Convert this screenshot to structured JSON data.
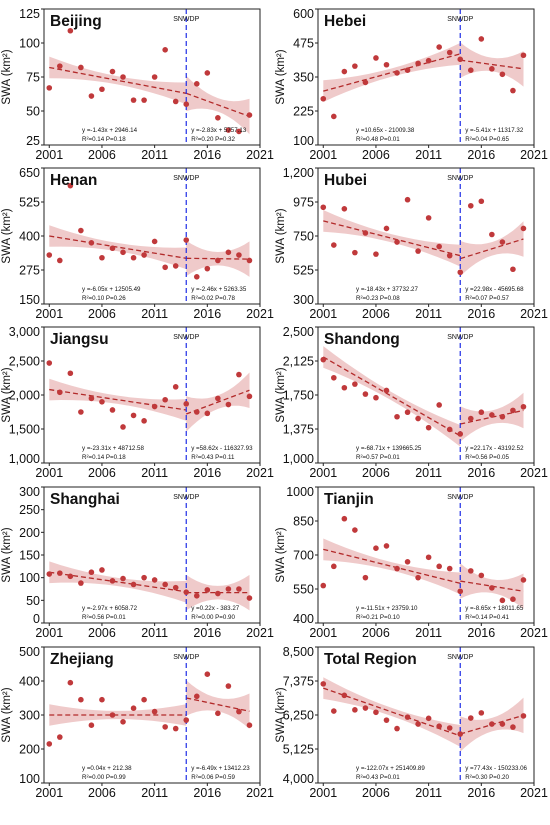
{
  "figure": {
    "y_unit_label": "SWA (km²)",
    "marker_label": "SNWDP",
    "marker_year": 2014,
    "colors": {
      "points": "#c0393b",
      "trend_line": "#b22a2a",
      "confidence_band": "#e9b8b8",
      "marker_line": "#1f2ee6"
    }
  },
  "chart_data": [
    {
      "type": "scatter",
      "title": "Beijing",
      "ylabel": "SWA (km²)",
      "xlim": [
        2000.5,
        2021
      ],
      "xticks": [
        2001,
        2006,
        2011,
        2016,
        2021
      ],
      "ylim": [
        25,
        125
      ],
      "yticks": [
        25,
        50,
        75,
        100,
        125
      ],
      "ytick_labels": [
        "25",
        "50",
        "75",
        "100",
        "125"
      ],
      "x": [
        2001,
        2002,
        2003,
        2004,
        2005,
        2006,
        2007,
        2008,
        2009,
        2010,
        2011,
        2012,
        2013,
        2014,
        2015,
        2016,
        2017,
        2018,
        2019,
        2020
      ],
      "y": [
        67,
        83,
        109,
        82,
        61,
        66,
        79,
        75,
        58,
        58,
        75,
        95,
        57,
        55,
        70,
        78,
        45,
        36,
        35,
        47
      ],
      "fits": [
        {
          "from": 2001,
          "to": 2014,
          "start": 82,
          "end": 63
        },
        {
          "from": 2014,
          "to": 2020,
          "start": 63,
          "end": 46
        }
      ],
      "annotations": [
        {
          "eq": "y =-1.43x + 2946.14",
          "stat": "R²=0.14  P=0.18"
        },
        {
          "eq": "y =-2.83x + 5757.13",
          "stat": "R²=0.20  P=0.32"
        }
      ]
    },
    {
      "type": "scatter",
      "title": "Hebei",
      "ylabel": "SWA (km²)",
      "xlim": [
        2000.5,
        2021
      ],
      "xticks": [
        2001,
        2006,
        2011,
        2016,
        2021
      ],
      "ylim": [
        100,
        600
      ],
      "yticks": [
        100,
        225,
        350,
        475,
        600
      ],
      "ytick_labels": [
        "100",
        "225",
        "350",
        "475",
        "600"
      ],
      "x": [
        2001,
        2002,
        2003,
        2004,
        2005,
        2006,
        2007,
        2008,
        2009,
        2010,
        2011,
        2012,
        2013,
        2014,
        2015,
        2016,
        2017,
        2018,
        2019,
        2020
      ],
      "y": [
        270,
        205,
        370,
        390,
        330,
        420,
        395,
        365,
        375,
        400,
        410,
        460,
        440,
        415,
        375,
        490,
        380,
        360,
        300,
        430
      ],
      "fits": [
        {
          "from": 2001,
          "to": 2014,
          "start": 298,
          "end": 435
        },
        {
          "from": 2014,
          "to": 2020,
          "start": 412,
          "end": 380
        }
      ],
      "annotations": [
        {
          "eq": "y =10.65x - 21009.38",
          "stat": "R²=0.48  P=0.01"
        },
        {
          "eq": "y =-5.41x + 11317.32",
          "stat": "R²=0.04  P=0.65"
        }
      ]
    },
    {
      "type": "scatter",
      "title": "Henan",
      "ylabel": "SWA (km²)",
      "xlim": [
        2000.5,
        2021
      ],
      "xticks": [
        2001,
        2006,
        2011,
        2016,
        2021
      ],
      "ylim": [
        150,
        650
      ],
      "yticks": [
        150,
        275,
        400,
        525,
        650
      ],
      "ytick_labels": [
        "150",
        "275",
        "400",
        "525",
        "650"
      ],
      "x": [
        2001,
        2002,
        2003,
        2004,
        2005,
        2006,
        2007,
        2008,
        2009,
        2010,
        2011,
        2012,
        2013,
        2014,
        2015,
        2016,
        2017,
        2018,
        2019,
        2020
      ],
      "y": [
        330,
        310,
        585,
        420,
        375,
        320,
        355,
        340,
        320,
        330,
        380,
        285,
        290,
        385,
        250,
        280,
        310,
        340,
        330,
        310
      ],
      "fits": [
        {
          "from": 2001,
          "to": 2014,
          "start": 400,
          "end": 318
        },
        {
          "from": 2014,
          "to": 2020,
          "start": 318,
          "end": 315
        }
      ],
      "annotations": [
        {
          "eq": "y =-6.05x + 12505.49",
          "stat": "R²=0.10  P=0.26"
        },
        {
          "eq": "y =-2.46x + 5263.35",
          "stat": "R²=0.02  P=0.78"
        }
      ]
    },
    {
      "type": "scatter",
      "title": "Hubei",
      "ylabel": "SWA (km²)",
      "xlim": [
        2000.5,
        2021
      ],
      "xticks": [
        2001,
        2006,
        2011,
        2016,
        2021
      ],
      "ylim": [
        300,
        1200
      ],
      "yticks": [
        300,
        525,
        750,
        975,
        1200
      ],
      "ytick_labels": [
        "300",
        "525",
        "750",
        "975",
        "1,200"
      ],
      "x": [
        2001,
        2002,
        2003,
        2004,
        2005,
        2006,
        2007,
        2008,
        2009,
        2010,
        2011,
        2012,
        2013,
        2014,
        2015,
        2016,
        2017,
        2018,
        2019,
        2020
      ],
      "y": [
        940,
        690,
        930,
        640,
        770,
        630,
        800,
        710,
        990,
        650,
        870,
        680,
        620,
        510,
        950,
        980,
        760,
        710,
        530,
        800
      ],
      "fits": [
        {
          "from": 2001,
          "to": 2014,
          "start": 850,
          "end": 620
        },
        {
          "from": 2014,
          "to": 2020,
          "start": 600,
          "end": 730
        }
      ],
      "annotations": [
        {
          "eq": "y =-18.43x + 37732.27",
          "stat": "R²=0.23  P=0.08"
        },
        {
          "eq": "y =22.98x - 45695.68",
          "stat": "R²=0.07  P=0.57"
        }
      ]
    },
    {
      "type": "scatter",
      "title": "Jiangsu",
      "ylabel": "SWA (km²)",
      "xlim": [
        2000.5,
        2021
      ],
      "xticks": [
        2001,
        2006,
        2011,
        2016,
        2021
      ],
      "ylim": [
        1000,
        3000
      ],
      "yticks": [
        1000,
        1500,
        2000,
        2500,
        3000
      ],
      "ytick_labels": [
        "1,000",
        "1,500",
        "2,000",
        "2,500",
        "3,000"
      ],
      "x": [
        2001,
        2002,
        2003,
        2004,
        2005,
        2006,
        2007,
        2008,
        2009,
        2010,
        2011,
        2012,
        2013,
        2014,
        2015,
        2016,
        2017,
        2018,
        2019,
        2020
      ],
      "y": [
        2470,
        2040,
        2320,
        1750,
        1950,
        1900,
        1780,
        1530,
        1700,
        1620,
        1830,
        1930,
        2120,
        1870,
        1750,
        1730,
        1950,
        1860,
        2300,
        1980
      ],
      "fits": [
        {
          "from": 2001,
          "to": 2014,
          "start": 2080,
          "end": 1780
        },
        {
          "from": 2014,
          "to": 2020,
          "start": 1720,
          "end": 2070
        }
      ],
      "annotations": [
        {
          "eq": "y =-23.31x + 48712.58",
          "stat": "R²=0.14  P=0.18"
        },
        {
          "eq": "y =58.62x - 116327.93",
          "stat": "R²=0.43  P=0.11"
        }
      ]
    },
    {
      "type": "scatter",
      "title": "Shandong",
      "ylabel": "SWA (km²)",
      "xlim": [
        2000.5,
        2021
      ],
      "xticks": [
        2001,
        2006,
        2011,
        2016,
        2021
      ],
      "ylim": [
        1000,
        2500
      ],
      "yticks": [
        1000,
        1375,
        1750,
        2125,
        2500
      ],
      "ytick_labels": [
        "1,000",
        "1,375",
        "1,750",
        "2,125",
        "2,500"
      ],
      "x": [
        2001,
        2002,
        2003,
        2004,
        2005,
        2006,
        2007,
        2008,
        2009,
        2010,
        2011,
        2012,
        2013,
        2014,
        2015,
        2016,
        2017,
        2018,
        2019,
        2020
      ],
      "y": [
        2140,
        1940,
        1830,
        1870,
        1760,
        1720,
        1800,
        1510,
        1560,
        1490,
        1390,
        1640,
        1370,
        1320,
        1490,
        1560,
        1530,
        1510,
        1580,
        1620
      ],
      "fits": [
        {
          "from": 2001,
          "to": 2014,
          "start": 2170,
          "end": 1300
        },
        {
          "from": 2014,
          "to": 2020,
          "start": 1430,
          "end": 1580
        }
      ],
      "annotations": [
        {
          "eq": "y =-68.71x + 139665.25",
          "stat": "R²=0.57  P=0.01"
        },
        {
          "eq": "y =22.17x - 43192.52",
          "stat": "R²=0.56  P=0.05"
        }
      ]
    },
    {
      "type": "scatter",
      "title": "Shanghai",
      "ylabel": "SWA (km²)",
      "xlim": [
        2000.5,
        2021
      ],
      "xticks": [
        2001,
        2006,
        2011,
        2016,
        2021
      ],
      "ylim": [
        0,
        300
      ],
      "yticks": [
        0,
        50,
        100,
        150,
        200,
        250,
        300
      ],
      "ytick_labels": [
        "0",
        "50",
        "100",
        "150",
        "200",
        "250",
        "300"
      ],
      "x": [
        2001,
        2002,
        2003,
        2004,
        2005,
        2006,
        2007,
        2008,
        2009,
        2010,
        2011,
        2012,
        2013,
        2014,
        2015,
        2016,
        2017,
        2018,
        2019,
        2020
      ],
      "y": [
        108,
        110,
        103,
        88,
        112,
        117,
        93,
        98,
        85,
        100,
        95,
        85,
        78,
        68,
        60,
        73,
        65,
        75,
        75,
        55
      ],
      "fits": [
        {
          "from": 2001,
          "to": 2014,
          "start": 112,
          "end": 69
        },
        {
          "from": 2014,
          "to": 2020,
          "start": 67,
          "end": 67
        }
      ],
      "annotations": [
        {
          "eq": "y =-2.97x + 6058.72",
          "stat": "R²=0.56  P=0.01"
        },
        {
          "eq": "y =0.22x - 383.27",
          "stat": "R²=0.00  P=0.90"
        }
      ]
    },
    {
      "type": "scatter",
      "title": "Tianjin",
      "ylabel": "SWA (km²)",
      "xlim": [
        2000.5,
        2021
      ],
      "xticks": [
        2001,
        2006,
        2011,
        2016,
        2021
      ],
      "ylim": [
        400,
        1000
      ],
      "yticks": [
        400,
        550,
        700,
        850,
        1000
      ],
      "ytick_labels": [
        "400",
        "550",
        "700",
        "850",
        "1000"
      ],
      "x": [
        2001,
        2002,
        2003,
        2004,
        2005,
        2006,
        2007,
        2008,
        2009,
        2010,
        2011,
        2012,
        2013,
        2014,
        2015,
        2016,
        2017,
        2018,
        2019,
        2020
      ],
      "y": [
        565,
        650,
        860,
        810,
        600,
        730,
        740,
        640,
        670,
        600,
        690,
        650,
        640,
        540,
        630,
        610,
        555,
        500,
        505,
        590
      ],
      "fits": [
        {
          "from": 2001,
          "to": 2014,
          "start": 725,
          "end": 575
        },
        {
          "from": 2014,
          "to": 2020,
          "start": 585,
          "end": 540
        }
      ],
      "annotations": [
        {
          "eq": "y =-11.51x + 23759.10",
          "stat": "R²=0.21  P=0.10"
        },
        {
          "eq": "y =-8.65x + 18011.65",
          "stat": "R²=0.14  P=0.41"
        }
      ]
    },
    {
      "type": "scatter",
      "title": "Zhejiang",
      "ylabel": "SWA (km²)",
      "xlim": [
        2000.5,
        2021
      ],
      "xticks": [
        2001,
        2006,
        2011,
        2016,
        2021
      ],
      "ylim": [
        100,
        500
      ],
      "yticks": [
        100,
        200,
        300,
        400,
        500
      ],
      "ytick_labels": [
        "100",
        "200",
        "300",
        "400",
        "500"
      ],
      "x": [
        2001,
        2002,
        2003,
        2004,
        2005,
        2006,
        2007,
        2008,
        2009,
        2010,
        2011,
        2012,
        2013,
        2014,
        2015,
        2016,
        2017,
        2018,
        2019,
        2020
      ],
      "y": [
        215,
        235,
        395,
        345,
        270,
        345,
        300,
        280,
        320,
        345,
        310,
        265,
        260,
        285,
        355,
        420,
        305,
        385,
        310,
        270
      ],
      "fits": [
        {
          "from": 2001,
          "to": 2014,
          "start": 300,
          "end": 300
        },
        {
          "from": 2014,
          "to": 2020,
          "start": 350,
          "end": 311
        }
      ],
      "annotations": [
        {
          "eq": "y =0.04x + 212.38",
          "stat": "R²=0.00  P=0.99"
        },
        {
          "eq": "y =-6.49x + 13412.23",
          "stat": "R²=0.06  P=0.59"
        }
      ]
    },
    {
      "type": "scatter",
      "title": "Total Region",
      "ylabel": "SWA (km²)",
      "xlim": [
        2000.5,
        2021
      ],
      "xticks": [
        2001,
        2006,
        2011,
        2016,
        2021
      ],
      "ylim": [
        4000,
        8500
      ],
      "yticks": [
        4000,
        5125,
        6250,
        7375,
        8500
      ],
      "ytick_labels": [
        "4,000",
        "5,125",
        "6,250",
        "7,375",
        "8,500"
      ],
      "x": [
        2001,
        2002,
        2003,
        2004,
        2005,
        2006,
        2007,
        2008,
        2009,
        2010,
        2011,
        2012,
        2013,
        2014,
        2015,
        2016,
        2017,
        2018,
        2019,
        2020
      ],
      "y": [
        7280,
        6380,
        6900,
        6420,
        6480,
        6340,
        6080,
        5800,
        6180,
        5950,
        6140,
        5880,
        5820,
        5620,
        6150,
        6320,
        5950,
        5950,
        5850,
        6220
      ],
      "fits": [
        {
          "from": 2001,
          "to": 2014,
          "start": 7140,
          "end": 5560
        },
        {
          "from": 2014,
          "to": 2020,
          "start": 5620,
          "end": 6240
        }
      ],
      "annotations": [
        {
          "eq": "y =-122.07x + 251409.89",
          "stat": "R²=0.43  P=0.01"
        },
        {
          "eq": "y =77.43x - 150233.06",
          "stat": "R²=0.30  P=0.20"
        }
      ]
    }
  ]
}
